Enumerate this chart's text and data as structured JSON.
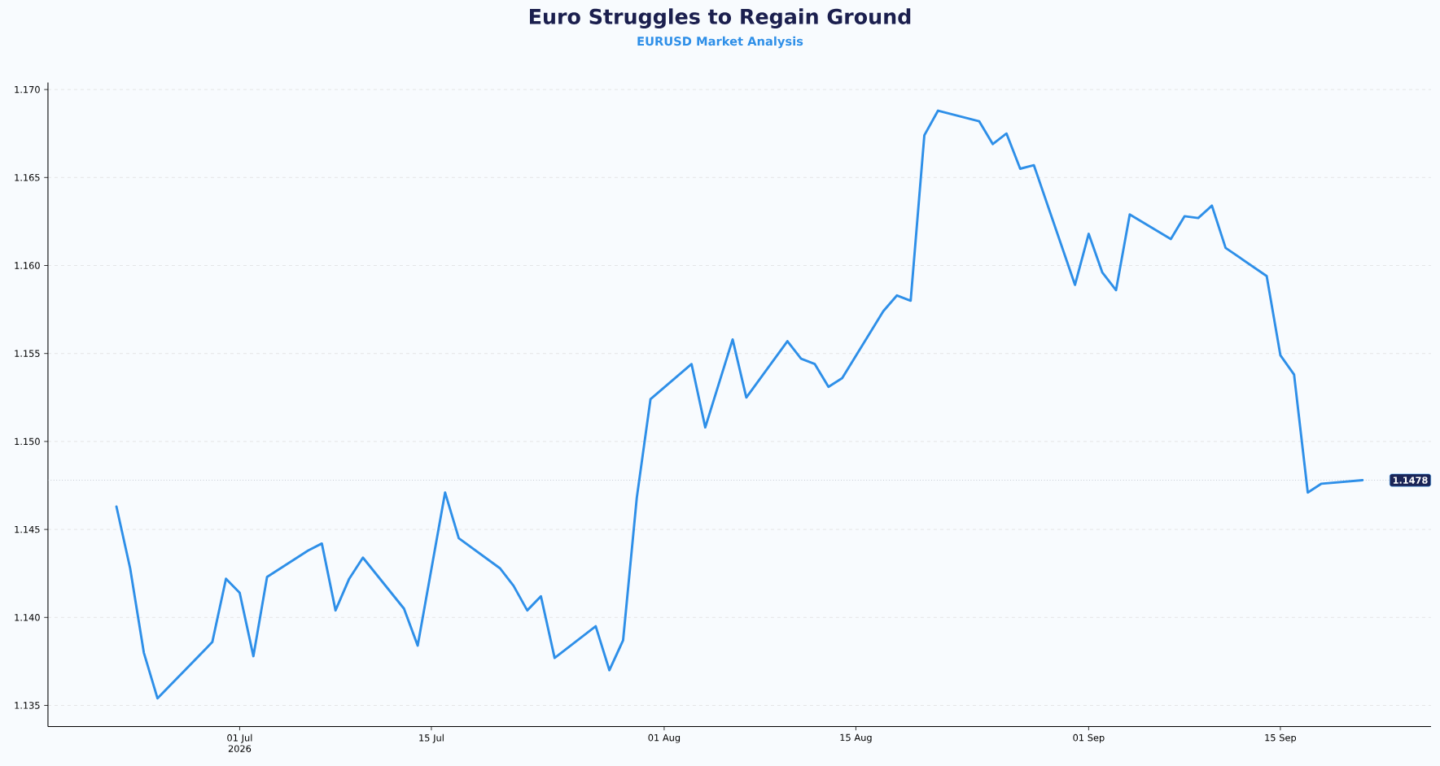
{
  "chart_data": {
    "type": "line",
    "title": "Euro Struggles to Regain Ground",
    "subtitle": "EURUSD Market Analysis",
    "x": [
      "2026-06-22",
      "2026-06-23",
      "2026-06-24",
      "2026-06-25",
      "2026-06-29",
      "2026-06-30",
      "2026-07-01",
      "2026-07-02",
      "2026-07-03",
      "2026-07-06",
      "2026-07-07",
      "2026-07-08",
      "2026-07-09",
      "2026-07-10",
      "2026-07-13",
      "2026-07-14",
      "2026-07-16",
      "2026-07-17",
      "2026-07-20",
      "2026-07-21",
      "2026-07-22",
      "2026-07-23",
      "2026-07-24",
      "2026-07-27",
      "2026-07-28",
      "2026-07-29",
      "2026-07-30",
      "2026-07-31",
      "2026-08-03",
      "2026-08-04",
      "2026-08-06",
      "2026-08-07",
      "2026-08-10",
      "2026-08-11",
      "2026-08-12",
      "2026-08-13",
      "2026-08-14",
      "2026-08-17",
      "2026-08-18",
      "2026-08-19",
      "2026-08-20",
      "2026-08-21",
      "2026-08-24",
      "2026-08-25",
      "2026-08-26",
      "2026-08-27",
      "2026-08-28",
      "2026-08-31",
      "2026-09-01",
      "2026-09-02",
      "2026-09-03",
      "2026-09-04",
      "2026-09-07",
      "2026-09-08",
      "2026-09-09",
      "2026-09-10",
      "2026-09-11",
      "2026-09-14",
      "2026-09-15",
      "2026-09-16",
      "2026-09-17",
      "2026-09-18",
      "2026-09-21"
    ],
    "series": [
      {
        "color": "#2e8fe8",
        "values": [
          1.1463,
          1.1428,
          1.138,
          1.1354,
          1.1386,
          1.1422,
          1.1414,
          1.1378,
          1.1423,
          1.1438,
          1.1442,
          1.1404,
          1.1422,
          1.1434,
          1.1405,
          1.1384,
          1.1471,
          1.1445,
          1.1428,
          1.1418,
          1.1404,
          1.1412,
          1.1377,
          1.1395,
          1.137,
          1.1387,
          1.1468,
          1.1524,
          1.1544,
          1.1508,
          1.1558,
          1.1525,
          1.1557,
          1.1547,
          1.1544,
          1.1531,
          1.1536,
          1.1574,
          1.1583,
          1.158,
          1.1674,
          1.1688,
          1.1682,
          1.1669,
          1.1675,
          1.1655,
          1.1657,
          1.1589,
          1.1618,
          1.1596,
          1.1586,
          1.1629,
          1.1615,
          1.1628,
          1.1627,
          1.1634,
          1.161,
          1.1594,
          1.1549,
          1.1538,
          1.1471,
          1.1476,
          1.1478
        ]
      }
    ],
    "xlim": [
      "2026-06-17",
      "2026-09-26"
    ],
    "xticks": [
      {
        "value": "2026-07-01",
        "label": "01 Jul 2026"
      },
      {
        "value": "2026-07-15",
        "label": "15 Jul"
      },
      {
        "value": "2026-08-01",
        "label": "01 Aug"
      },
      {
        "value": "2026-08-15",
        "label": "15 Aug"
      },
      {
        "value": "2026-09-01",
        "label": "01 Sep"
      },
      {
        "value": "2026-09-15",
        "label": "15 Sep"
      }
    ],
    "ylim": [
      1.1338,
      1.1704
    ],
    "yticks": [
      1.135,
      {
        "value": 1.14,
        "label": "1.140"
      },
      1.145,
      {
        "value": 1.15,
        "label": "1.150"
      },
      1.155,
      {
        "value": 1.16,
        "label": "1.160"
      },
      1.165,
      {
        "value": 1.17,
        "label": "1.170"
      }
    ],
    "grid": "y",
    "marker": "none",
    "line_style": "solid",
    "ref_lines": [
      {
        "axis": "y",
        "value": 1.1478,
        "label": "1.1478",
        "color": "#aab0bb",
        "line_style": "dotted"
      }
    ]
  }
}
